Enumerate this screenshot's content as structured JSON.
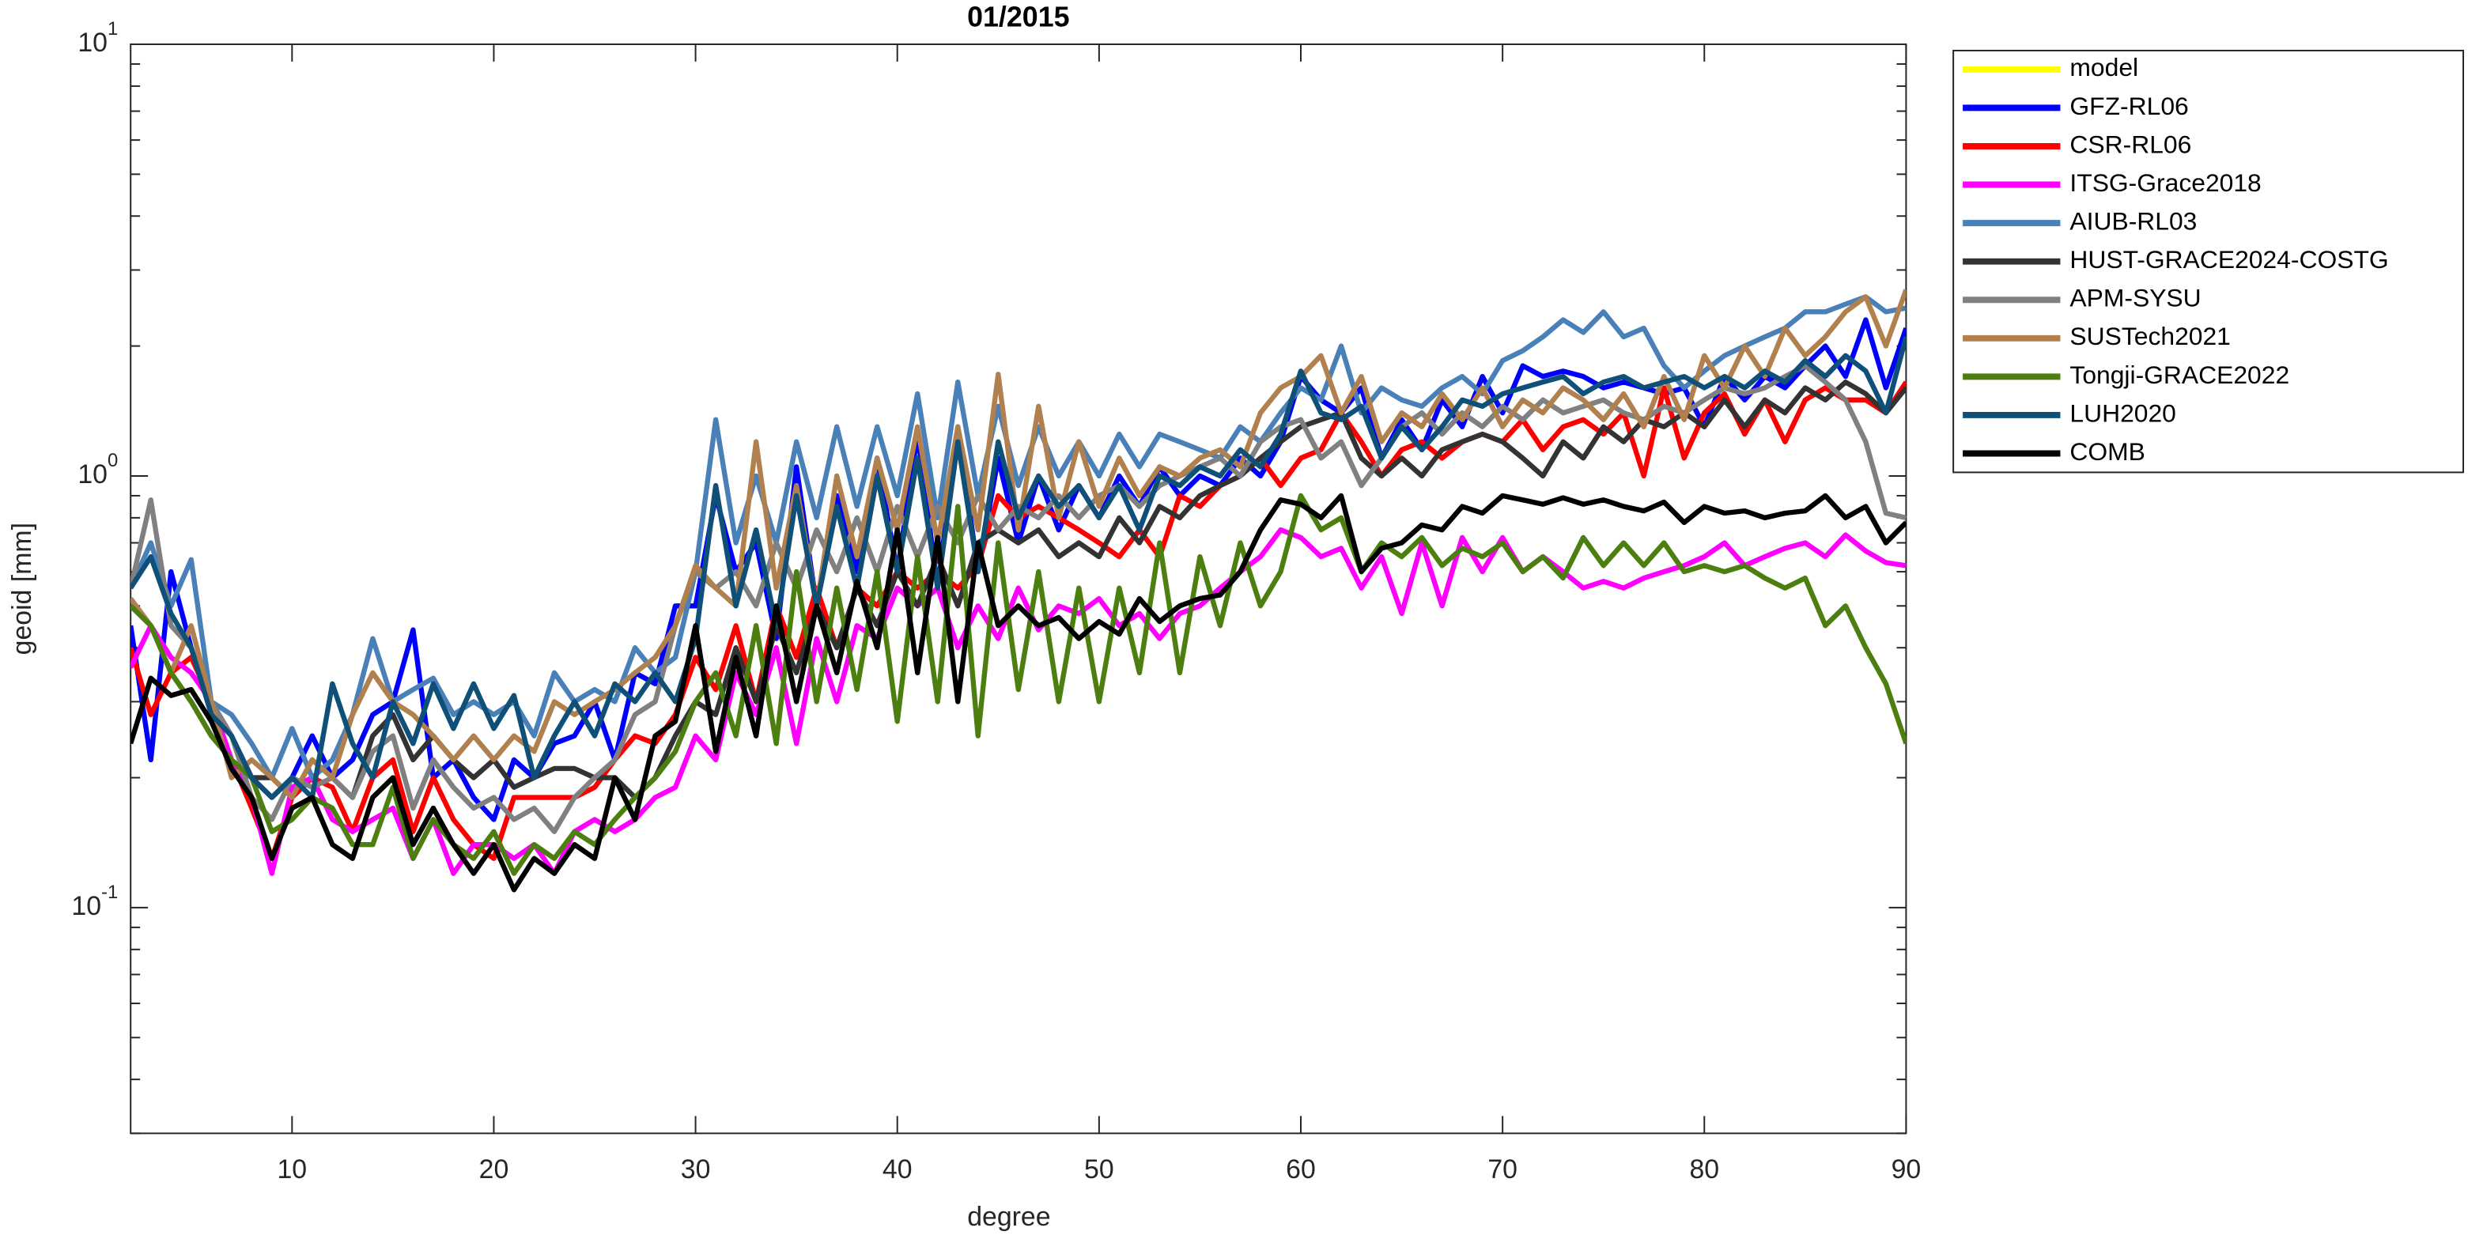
{
  "chart_data": {
    "type": "line",
    "title": "01/2015",
    "x_label": "degree",
    "y_label": "geoid [mm]",
    "log_y": true,
    "xlim": [
      2,
      90
    ],
    "ylim": [
      0.03,
      10
    ],
    "xticks": [
      10,
      20,
      30,
      40,
      50,
      60,
      70,
      80,
      90
    ],
    "yticks": [
      {
        "value": 0.1,
        "label": "10^-1"
      },
      {
        "value": 1,
        "label": "10^0"
      },
      {
        "value": 10,
        "label": "10^1"
      }
    ],
    "legend": "outside-right-top",
    "x": [
      2,
      3,
      4,
      5,
      6,
      7,
      8,
      9,
      10,
      11,
      12,
      13,
      14,
      15,
      16,
      17,
      18,
      19,
      20,
      21,
      22,
      23,
      24,
      25,
      26,
      27,
      28,
      29,
      30,
      31,
      32,
      33,
      34,
      35,
      36,
      37,
      38,
      39,
      40,
      41,
      42,
      43,
      44,
      45,
      46,
      47,
      48,
      49,
      50,
      51,
      52,
      53,
      54,
      55,
      56,
      57,
      58,
      59,
      60,
      61,
      62,
      63,
      64,
      65,
      66,
      67,
      68,
      69,
      70,
      71,
      72,
      73,
      74,
      75,
      76,
      77,
      78,
      79,
      80,
      81,
      82,
      83,
      84,
      85,
      86,
      87,
      88,
      89,
      90
    ],
    "series": [
      {
        "name": "model",
        "color": "#ffff00",
        "values": [
          null,
          null,
          null,
          null,
          null,
          null,
          null,
          null,
          null,
          null,
          null,
          null,
          null,
          null,
          null,
          null,
          null,
          null,
          null,
          null,
          null,
          null,
          null,
          null,
          null,
          null,
          null,
          null,
          null,
          null,
          null,
          null,
          null,
          null,
          null,
          null,
          null,
          null,
          null,
          null,
          null,
          null,
          null,
          null,
          null,
          null,
          null,
          null,
          null,
          null,
          null,
          null,
          null,
          null,
          null,
          null,
          null,
          null,
          null,
          null,
          null,
          null,
          null,
          null,
          null,
          null,
          null,
          null,
          null,
          null,
          null,
          null,
          null,
          null,
          null,
          null,
          null,
          null,
          null,
          null,
          null,
          null,
          null,
          null,
          null,
          null,
          null,
          null,
          null
        ]
      },
      {
        "name": "GFZ-RL06",
        "color": "#0000ff",
        "values": [
          0.45,
          0.22,
          0.6,
          0.4,
          0.3,
          0.25,
          0.2,
          0.18,
          0.2,
          0.25,
          0.2,
          0.22,
          0.28,
          0.3,
          0.44,
          0.2,
          0.22,
          0.18,
          0.16,
          0.22,
          0.2,
          0.24,
          0.25,
          0.3,
          0.22,
          0.35,
          0.33,
          0.5,
          0.5,
          0.9,
          0.6,
          0.7,
          0.42,
          1.05,
          0.5,
          0.9,
          0.6,
          1.1,
          0.6,
          1.25,
          0.55,
          1.3,
          0.6,
          1.1,
          0.7,
          1.0,
          0.75,
          0.95,
          0.8,
          1.0,
          0.85,
          1.05,
          0.9,
          1.0,
          0.95,
          1.1,
          1.0,
          1.2,
          1.7,
          1.5,
          1.4,
          1.6,
          1.1,
          1.35,
          1.15,
          1.5,
          1.3,
          1.7,
          1.4,
          1.8,
          1.7,
          1.75,
          1.7,
          1.6,
          1.65,
          1.6,
          1.55,
          1.6,
          1.3,
          1.7,
          1.5,
          1.7,
          1.6,
          1.8,
          2.0,
          1.7,
          2.3,
          1.6,
          2.2
        ]
      },
      {
        "name": "CSR-RL06",
        "color": "#ff0000",
        "values": [
          0.4,
          0.28,
          0.35,
          0.38,
          0.3,
          0.22,
          0.17,
          0.13,
          0.18,
          0.2,
          0.19,
          0.15,
          0.2,
          0.22,
          0.15,
          0.2,
          0.16,
          0.14,
          0.13,
          0.18,
          0.18,
          0.18,
          0.18,
          0.19,
          0.22,
          0.25,
          0.24,
          0.28,
          0.38,
          0.32,
          0.45,
          0.3,
          0.5,
          0.38,
          0.55,
          0.4,
          0.55,
          0.5,
          0.6,
          0.55,
          0.6,
          0.55,
          0.62,
          0.9,
          0.8,
          0.85,
          0.8,
          0.75,
          0.7,
          0.65,
          0.75,
          0.65,
          0.9,
          0.85,
          0.95,
          1.0,
          1.1,
          0.95,
          1.1,
          1.15,
          1.4,
          1.2,
          1.0,
          1.15,
          1.2,
          1.1,
          1.2,
          1.25,
          1.2,
          1.35,
          1.15,
          1.3,
          1.35,
          1.25,
          1.4,
          1.0,
          1.6,
          1.1,
          1.4,
          1.55,
          1.25,
          1.5,
          1.2,
          1.5,
          1.6,
          1.5,
          1.5,
          1.4,
          1.65
        ]
      },
      {
        "name": "ITSG-Grace2018",
        "color": "#ff00ff",
        "values": [
          0.36,
          0.45,
          0.38,
          0.35,
          0.3,
          0.22,
          0.18,
          0.12,
          0.19,
          0.2,
          0.16,
          0.15,
          0.16,
          0.17,
          0.13,
          0.16,
          0.12,
          0.14,
          0.14,
          0.13,
          0.14,
          0.12,
          0.15,
          0.16,
          0.15,
          0.16,
          0.18,
          0.19,
          0.25,
          0.22,
          0.35,
          0.28,
          0.4,
          0.24,
          0.42,
          0.3,
          0.45,
          0.42,
          0.55,
          0.5,
          0.55,
          0.4,
          0.5,
          0.42,
          0.55,
          0.44,
          0.5,
          0.48,
          0.52,
          0.45,
          0.48,
          0.42,
          0.48,
          0.5,
          0.55,
          0.6,
          0.65,
          0.75,
          0.72,
          0.65,
          0.68,
          0.55,
          0.65,
          0.48,
          0.7,
          0.5,
          0.72,
          0.6,
          0.72,
          0.6,
          0.65,
          0.6,
          0.55,
          0.57,
          0.55,
          0.58,
          0.6,
          0.62,
          0.65,
          0.7,
          0.62,
          0.65,
          0.68,
          0.7,
          0.65,
          0.73,
          0.67,
          0.63,
          0.62
        ]
      },
      {
        "name": "AIUB-RL03",
        "color": "#4a80b8",
        "values": [
          0.55,
          0.7,
          0.5,
          0.64,
          0.3,
          0.28,
          0.24,
          0.2,
          0.26,
          0.2,
          0.22,
          0.28,
          0.42,
          0.3,
          0.32,
          0.34,
          0.28,
          0.3,
          0.28,
          0.3,
          0.25,
          0.35,
          0.3,
          0.32,
          0.3,
          0.4,
          0.35,
          0.38,
          0.6,
          1.35,
          0.7,
          1.0,
          0.7,
          1.2,
          0.8,
          1.3,
          0.85,
          1.3,
          0.9,
          1.55,
          0.8,
          1.65,
          0.9,
          1.45,
          0.95,
          1.3,
          1.0,
          1.2,
          1.0,
          1.25,
          1.05,
          1.25,
          1.2,
          1.15,
          1.1,
          1.3,
          1.2,
          1.4,
          1.6,
          1.5,
          2.0,
          1.4,
          1.6,
          1.5,
          1.45,
          1.6,
          1.7,
          1.55,
          1.85,
          1.95,
          2.1,
          2.3,
          2.15,
          2.4,
          2.1,
          2.2,
          1.8,
          1.6,
          1.75,
          1.9,
          2.0,
          2.1,
          2.2,
          2.4,
          2.4,
          2.5,
          2.6,
          2.4,
          2.45
        ]
      },
      {
        "name": "HUST-GRACE2024-COSTG",
        "color": "#333333",
        "values": [
          0.5,
          0.45,
          0.35,
          0.3,
          0.25,
          0.22,
          0.2,
          0.2,
          0.18,
          0.22,
          0.2,
          0.18,
          0.25,
          0.28,
          0.22,
          0.25,
          0.22,
          0.2,
          0.22,
          0.19,
          0.2,
          0.21,
          0.21,
          0.2,
          0.2,
          0.18,
          0.2,
          0.25,
          0.3,
          0.28,
          0.4,
          0.3,
          0.45,
          0.35,
          0.5,
          0.4,
          0.55,
          0.45,
          0.6,
          0.5,
          0.65,
          0.5,
          0.7,
          0.75,
          0.7,
          0.75,
          0.65,
          0.7,
          0.65,
          0.8,
          0.7,
          0.85,
          0.8,
          0.9,
          0.95,
          1.0,
          1.1,
          1.2,
          1.3,
          1.35,
          1.4,
          1.1,
          1.0,
          1.1,
          1.0,
          1.15,
          1.2,
          1.25,
          1.2,
          1.1,
          1.0,
          1.2,
          1.1,
          1.3,
          1.2,
          1.35,
          1.3,
          1.4,
          1.3,
          1.5,
          1.3,
          1.5,
          1.4,
          1.6,
          1.5,
          1.65,
          1.55,
          1.4,
          1.6
        ]
      },
      {
        "name": "APM-SYSU",
        "color": "#808080",
        "values": [
          0.55,
          0.88,
          0.45,
          0.4,
          0.3,
          0.25,
          0.18,
          0.16,
          0.2,
          0.19,
          0.2,
          0.18,
          0.23,
          0.25,
          0.17,
          0.22,
          0.19,
          0.17,
          0.18,
          0.16,
          0.17,
          0.15,
          0.18,
          0.2,
          0.22,
          0.28,
          0.3,
          0.45,
          0.6,
          0.55,
          0.6,
          0.5,
          0.7,
          0.55,
          0.75,
          0.6,
          0.8,
          0.6,
          0.85,
          0.65,
          0.85,
          0.7,
          0.9,
          0.75,
          0.85,
          0.8,
          0.9,
          0.8,
          0.9,
          0.95,
          0.85,
          0.95,
          1.0,
          1.05,
          1.1,
          1.0,
          1.2,
          1.3,
          1.35,
          1.1,
          1.2,
          0.95,
          1.1,
          1.3,
          1.4,
          1.25,
          1.4,
          1.3,
          1.45,
          1.35,
          1.5,
          1.4,
          1.45,
          1.5,
          1.4,
          1.35,
          1.45,
          1.4,
          1.5,
          1.6,
          1.55,
          1.6,
          1.7,
          1.8,
          1.65,
          1.5,
          1.2,
          0.82,
          0.8
        ]
      },
      {
        "name": "SUSTech2021",
        "color": "#b0804f",
        "values": [
          0.52,
          0.45,
          0.35,
          0.45,
          0.3,
          0.2,
          0.22,
          0.2,
          0.18,
          0.22,
          0.2,
          0.28,
          0.35,
          0.3,
          0.28,
          0.25,
          0.22,
          0.25,
          0.22,
          0.25,
          0.23,
          0.3,
          0.28,
          0.3,
          0.32,
          0.35,
          0.38,
          0.45,
          0.62,
          0.55,
          0.5,
          1.2,
          0.55,
          0.95,
          0.5,
          1.0,
          0.65,
          1.1,
          0.75,
          1.3,
          0.7,
          1.3,
          0.75,
          1.72,
          0.75,
          1.45,
          0.8,
          1.2,
          0.85,
          1.1,
          0.9,
          1.05,
          1.0,
          1.1,
          1.15,
          1.05,
          1.4,
          1.6,
          1.7,
          1.9,
          1.4,
          1.7,
          1.2,
          1.4,
          1.3,
          1.55,
          1.35,
          1.6,
          1.3,
          1.5,
          1.4,
          1.6,
          1.5,
          1.35,
          1.55,
          1.3,
          1.7,
          1.35,
          1.9,
          1.6,
          2.0,
          1.7,
          2.2,
          1.9,
          2.1,
          2.4,
          2.6,
          2.0,
          2.7
        ]
      },
      {
        "name": "Tongji-GRACE2022",
        "color": "#4d7f10",
        "values": [
          0.5,
          0.45,
          0.35,
          0.3,
          0.25,
          0.22,
          0.2,
          0.15,
          0.16,
          0.18,
          0.17,
          0.14,
          0.14,
          0.19,
          0.13,
          0.16,
          0.14,
          0.13,
          0.15,
          0.12,
          0.14,
          0.13,
          0.15,
          0.14,
          0.16,
          0.18,
          0.2,
          0.23,
          0.3,
          0.35,
          0.25,
          0.45,
          0.24,
          0.6,
          0.3,
          0.55,
          0.32,
          0.6,
          0.27,
          0.65,
          0.3,
          0.85,
          0.25,
          0.7,
          0.32,
          0.6,
          0.3,
          0.55,
          0.3,
          0.55,
          0.35,
          0.7,
          0.35,
          0.65,
          0.45,
          0.7,
          0.5,
          0.6,
          0.9,
          0.75,
          0.8,
          0.6,
          0.7,
          0.65,
          0.72,
          0.62,
          0.68,
          0.65,
          0.7,
          0.6,
          0.65,
          0.58,
          0.72,
          0.62,
          0.7,
          0.62,
          0.7,
          0.6,
          0.62,
          0.6,
          0.62,
          0.58,
          0.55,
          0.58,
          0.45,
          0.5,
          0.4,
          0.33,
          0.24
        ]
      },
      {
        "name": "LUH2020",
        "color": "#0f5078",
        "values": [
          0.55,
          0.65,
          0.48,
          0.4,
          0.28,
          0.25,
          0.2,
          0.18,
          0.2,
          0.18,
          0.33,
          0.24,
          0.2,
          0.3,
          0.24,
          0.33,
          0.26,
          0.33,
          0.26,
          0.31,
          0.2,
          0.25,
          0.3,
          0.25,
          0.33,
          0.3,
          0.35,
          0.3,
          0.42,
          0.95,
          0.5,
          0.75,
          0.45,
          0.9,
          0.5,
          0.85,
          0.55,
          1.0,
          0.6,
          1.1,
          0.55,
          1.2,
          0.6,
          1.2,
          0.8,
          1.0,
          0.85,
          0.95,
          0.8,
          0.95,
          0.75,
          1.0,
          0.95,
          1.05,
          1.0,
          1.15,
          1.05,
          1.25,
          1.75,
          1.4,
          1.35,
          1.45,
          1.1,
          1.3,
          1.15,
          1.3,
          1.5,
          1.45,
          1.55,
          1.6,
          1.65,
          1.7,
          1.55,
          1.65,
          1.7,
          1.6,
          1.65,
          1.7,
          1.6,
          1.7,
          1.6,
          1.75,
          1.65,
          1.85,
          1.7,
          1.9,
          1.75,
          1.4,
          2.1
        ]
      },
      {
        "name": "COMB",
        "color": "#000000",
        "values": [
          0.24,
          0.34,
          0.31,
          0.32,
          0.27,
          0.21,
          0.18,
          0.13,
          0.17,
          0.18,
          0.14,
          0.13,
          0.18,
          0.2,
          0.14,
          0.17,
          0.14,
          0.12,
          0.14,
          0.11,
          0.13,
          0.12,
          0.14,
          0.13,
          0.2,
          0.16,
          0.25,
          0.27,
          0.45,
          0.23,
          0.38,
          0.25,
          0.5,
          0.3,
          0.5,
          0.35,
          0.57,
          0.4,
          0.75,
          0.35,
          0.72,
          0.3,
          0.7,
          0.45,
          0.5,
          0.45,
          0.47,
          0.42,
          0.46,
          0.43,
          0.52,
          0.46,
          0.5,
          0.52,
          0.53,
          0.6,
          0.75,
          0.88,
          0.86,
          0.8,
          0.9,
          0.6,
          0.68,
          0.7,
          0.77,
          0.75,
          0.85,
          0.82,
          0.9,
          0.88,
          0.86,
          0.89,
          0.86,
          0.88,
          0.85,
          0.83,
          0.87,
          0.78,
          0.85,
          0.82,
          0.83,
          0.8,
          0.82,
          0.83,
          0.9,
          0.8,
          0.85,
          0.7,
          0.78
        ]
      }
    ]
  }
}
